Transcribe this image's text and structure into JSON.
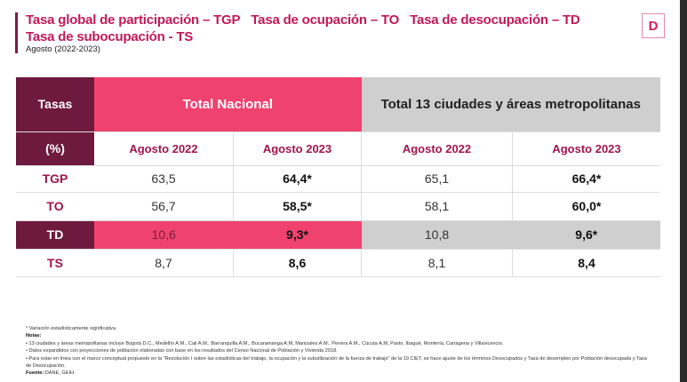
{
  "header": {
    "titles": [
      "Tasa global de participación – TGP",
      "Tasa de ocupación – TO",
      "Tasa de desocupación – TD"
    ],
    "title2": "Tasa de subocupación - TS",
    "subtitle": "Agosto (2022-2023)",
    "logo": "D"
  },
  "table": {
    "col0_top": "Tasas",
    "col0_bottom": "(%)",
    "group1": "Total Nacional",
    "group2": "Total 13 ciudades y áreas metropolitanas",
    "subheaders": [
      "Agosto 2022",
      "Agosto 2023",
      "Agosto 2022",
      "Agosto 2023"
    ],
    "rows": [
      {
        "label": "TGP",
        "values": [
          "63,5",
          "64,4*",
          "65,1",
          "66,4*"
        ]
      },
      {
        "label": "TO",
        "values": [
          "56,7",
          "58,5*",
          "58,1",
          "60,0*"
        ]
      },
      {
        "label": "TD",
        "values": [
          "10,6",
          "9,3*",
          "10,8",
          "9,6*"
        ]
      },
      {
        "label": "TS",
        "values": [
          "8,7",
          "8,6",
          "8,1",
          "8,4"
        ]
      }
    ]
  },
  "notes": {
    "sig": "* Variación estadísticamente significativa.",
    "notes_label": "Notas:",
    "items": [
      "• 13 ciudades y áreas metropolitanas incluye Bogotá D.C., Medellín A.M., Cali A.M., Barranquilla A.M., Bucaramanga A.M, Manizales A.M., Pereira A.M., Cúcuta A.M, Pasto, Ibagué, Montería, Cartagena y Villavicencio.",
      "• Datos expandidos con proyecciones de población elaboradas con base en los resultados del Censo Nacional de Población y Vivienda 2018.",
      "• Para estar en línea con el marco conceptual propuesto en la \"Resolución I sobre las estadísticas del trabajo, la ocupación y la subutilización de la fuerza de trabajo\" de la 19 CIET, se hace ajuste de los términos Desocupados y Tasa de desempleo por Población desocupada y Tasa de Desocupación."
    ],
    "source_label": "Fuente:",
    "source": "DANE, GEIH."
  },
  "colors": {
    "dark": "#6e1a3e",
    "pink": "#f0426e",
    "grey": "#cfcfcf",
    "title": "#c2185b"
  }
}
